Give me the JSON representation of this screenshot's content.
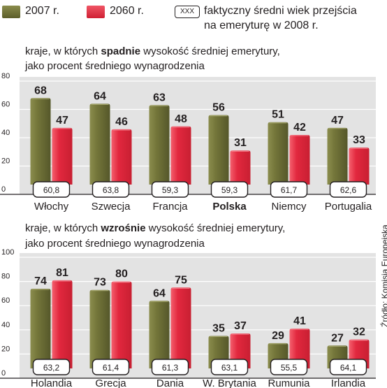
{
  "legend": {
    "series1_label": "2007 r.",
    "series2_label": "2060 r.",
    "box_label": "XXX",
    "box_text_line1": "faktyczny średni wiek przejścia",
    "box_text_line2": "na emeryturę w 2008 r."
  },
  "colors": {
    "series1": "#6b6d33",
    "series2": "#e0263c",
    "panel": "#e3e3e3"
  },
  "source": "Źródło: Komisja Europejska",
  "chart_data": [
    {
      "type": "bar",
      "title_before": "kraje, w których ",
      "title_bold": "spadnie",
      "title_after": " wysokość średniej emerytury,",
      "subtitle": "jako procent średniego wynagrodzenia",
      "ylim": [
        0,
        80
      ],
      "yticks": [
        0,
        20,
        40,
        60,
        80
      ],
      "categories": [
        "Włochy",
        "Szwecja",
        "Francja",
        "Polska",
        "Niemcy",
        "Portugalia"
      ],
      "bold_category": "Polska",
      "series": [
        {
          "name": "2007 r.",
          "values": [
            68,
            64,
            63,
            56,
            51,
            47
          ]
        },
        {
          "name": "2060 r.",
          "values": [
            47,
            46,
            48,
            31,
            42,
            33
          ]
        }
      ],
      "retirement_age": [
        "60,8",
        "63,8",
        "59,3",
        "59,3",
        "61,7",
        "62,6"
      ]
    },
    {
      "type": "bar",
      "title_before": "kraje, w których ",
      "title_bold": "wzrośnie",
      "title_after": " wysokość średniej emerytury,",
      "subtitle": "jako procent średniego wynagrodzenia",
      "ylim": [
        0,
        100
      ],
      "yticks": [
        0,
        20,
        40,
        60,
        80,
        100
      ],
      "categories": [
        "Holandia",
        "Grecja",
        "Dania",
        "W. Brytania",
        "Rumunia",
        "Irlandia"
      ],
      "bold_category": "",
      "series": [
        {
          "name": "2007 r.",
          "values": [
            74,
            73,
            64,
            35,
            29,
            27
          ]
        },
        {
          "name": "2060 r.",
          "values": [
            81,
            80,
            75,
            37,
            41,
            32
          ]
        }
      ],
      "retirement_age": [
        "63,2",
        "61,4",
        "61,3",
        "63,1",
        "55,5",
        "64,1"
      ]
    }
  ]
}
